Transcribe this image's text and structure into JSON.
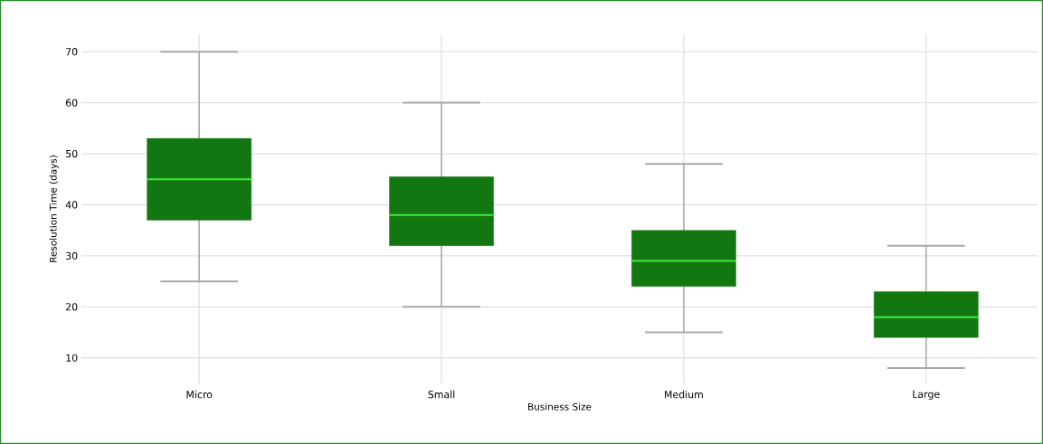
{
  "chart_data": {
    "type": "box",
    "xlabel": "Business Size",
    "ylabel": "Resolution Time (days)",
    "categories": [
      "Micro",
      "Small",
      "Medium",
      "Large"
    ],
    "boxes": [
      {
        "low": 25,
        "q1": 37,
        "median": 45,
        "q3": 53,
        "high": 70
      },
      {
        "low": 20,
        "q1": 32,
        "median": 38,
        "q3": 45.5,
        "high": 60
      },
      {
        "low": 15,
        "q1": 24,
        "median": 29,
        "q3": 35,
        "high": 48
      },
      {
        "low": 8,
        "q1": 14,
        "median": 18,
        "q3": 23,
        "high": 32
      }
    ],
    "color": "#137711",
    "ylim": [
      5,
      73.4
    ],
    "yticks": [
      10,
      20,
      30,
      40,
      50,
      60,
      70
    ],
    "grid": true
  }
}
